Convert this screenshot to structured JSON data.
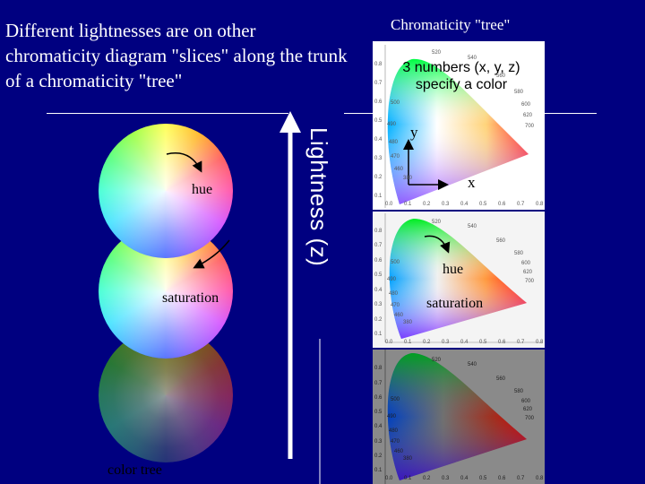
{
  "heading_left": "Different lightnesses are on other chromaticity diagram \"slices\" along the trunk of a chromaticity \"tree\"",
  "heading_right": "Chromaticity \"tree\"",
  "lightness_axis_label": "Lightness (z)",
  "wheels": {
    "hue_label": "hue",
    "saturation_label": "saturation",
    "caption": "color tree"
  },
  "top_panel": {
    "callout": "3 numbers (x, y, z) specify a color",
    "axis_y": "y",
    "axis_x": "x"
  },
  "middle_panel": {
    "hue_label": "hue",
    "saturation_label": "saturation"
  },
  "diagram_tick_labels": {
    "x_ticks": [
      "0.0",
      "0.1",
      "0.2",
      "0.3",
      "0.4",
      "0.5",
      "0.6",
      "0.7",
      "0.8"
    ],
    "y_ticks": [
      "0.1",
      "0.2",
      "0.3",
      "0.4",
      "0.5",
      "0.6",
      "0.7",
      "0.8"
    ],
    "wavelengths": [
      "520",
      "540",
      "560",
      "580",
      "600",
      "620",
      "700",
      "500",
      "490",
      "480",
      "470",
      "460",
      "380"
    ]
  }
}
